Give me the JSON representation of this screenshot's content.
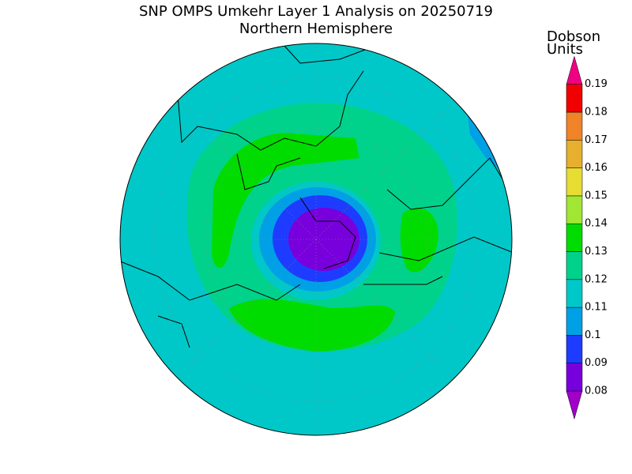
{
  "header": {
    "title": "SNP OMPS Umkehr Layer 1 Analysis on 20250719",
    "subtitle": "Northern Hemisphere"
  },
  "colorbar": {
    "label": [
      "Dobson",
      "Units"
    ],
    "ticks": [
      0.08,
      0.09,
      0.1,
      0.11,
      0.12,
      0.13,
      0.14,
      0.15,
      0.16,
      0.17,
      0.18,
      0.19
    ],
    "colors": [
      "#a000c8",
      "#7800dc",
      "#1e3cff",
      "#00a0e6",
      "#00c8c8",
      "#00d28c",
      "#00dc00",
      "#a0e632",
      "#e6dc32",
      "#e6af2d",
      "#f08228",
      "#f00000",
      "#f00082"
    ]
  }
}
